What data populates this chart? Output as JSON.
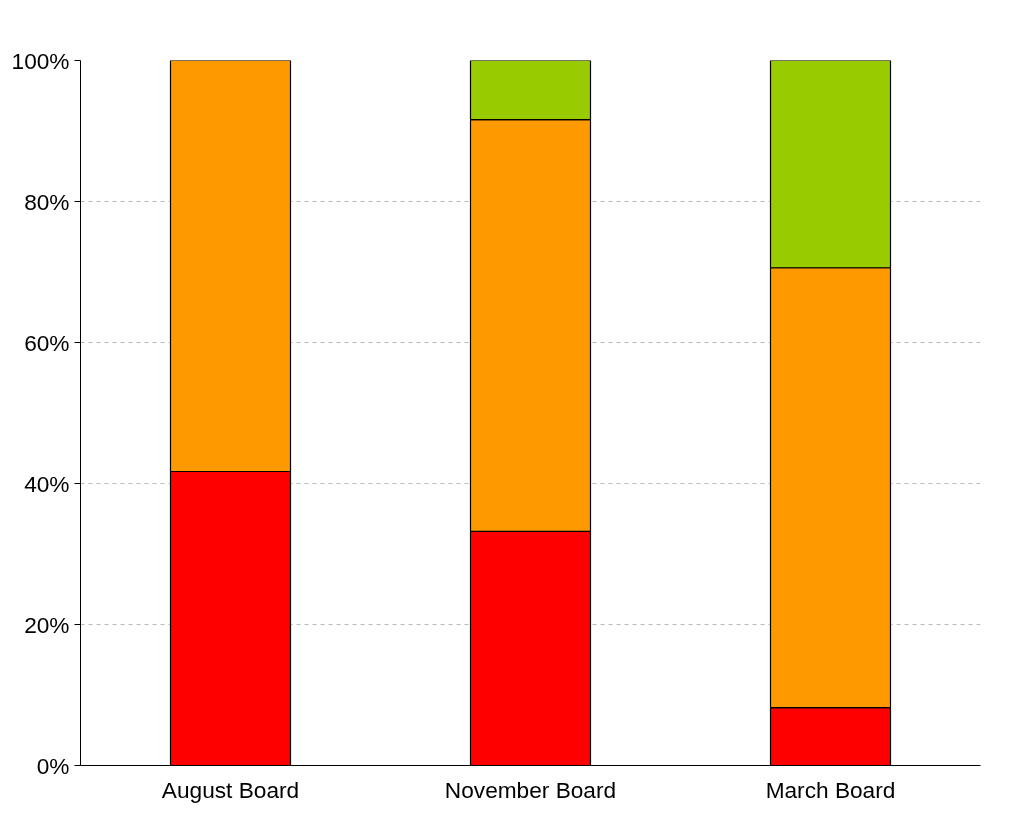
{
  "chart_data": {
    "type": "bar",
    "stacked": true,
    "categories": [
      "August Board",
      "November Board",
      "March Board"
    ],
    "series": [
      {
        "color": "#ff0000",
        "values": [
          41.7,
          33.2,
          8.2
        ]
      },
      {
        "color": "#ff9900",
        "values": [
          58.3,
          58.4,
          62.4
        ]
      },
      {
        "color": "#99cc00",
        "values": [
          null,
          8.4,
          29.4
        ]
      }
    ],
    "ylim": [
      0,
      100
    ],
    "yticks": [
      {
        "value": 0,
        "label": "0%"
      },
      {
        "value": 20,
        "label": "20%"
      },
      {
        "value": 40,
        "label": "40%"
      },
      {
        "value": 60,
        "label": "60%"
      },
      {
        "value": 80,
        "label": "80%"
      },
      {
        "value": 100,
        "label": "100%"
      }
    ],
    "grid": "y"
  }
}
